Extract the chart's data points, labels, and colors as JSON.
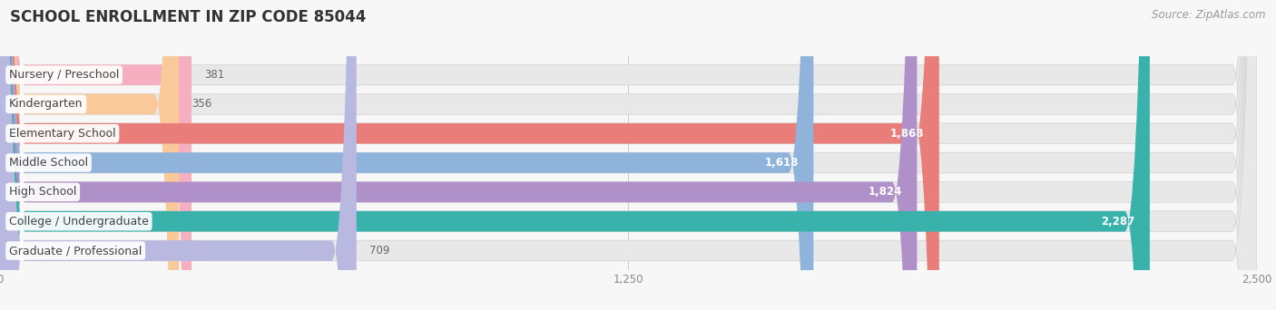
{
  "title": "SCHOOL ENROLLMENT IN ZIP CODE 85044",
  "source": "Source: ZipAtlas.com",
  "categories": [
    "Nursery / Preschool",
    "Kindergarten",
    "Elementary School",
    "Middle School",
    "High School",
    "College / Undergraduate",
    "Graduate / Professional"
  ],
  "values": [
    381,
    356,
    1868,
    1618,
    1824,
    2287,
    709
  ],
  "bar_colors": [
    "#f5afc0",
    "#f9c99a",
    "#e87d7a",
    "#8fb3db",
    "#b090c8",
    "#38b2aa",
    "#b8b8e0"
  ],
  "label_colors": [
    "#555555",
    "#555555",
    "#ffffff",
    "#ffffff",
    "#ffffff",
    "#ffffff",
    "#555555"
  ],
  "xlim": [
    0,
    2500
  ],
  "xticks": [
    0,
    1250,
    2500
  ],
  "xtick_labels": [
    "0",
    "1,250",
    "2,500"
  ],
  "background_color": "#f7f7f7",
  "bar_bg_color": "#e8e8e8",
  "title_fontsize": 12,
  "source_fontsize": 8.5,
  "label_fontsize": 9,
  "value_fontsize": 8.5,
  "bar_height": 0.7,
  "figsize": [
    14.06,
    3.42
  ]
}
